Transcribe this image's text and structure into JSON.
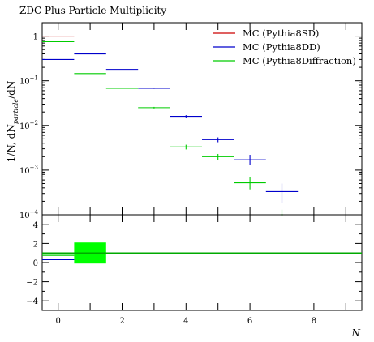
{
  "chart_data": {
    "type": "scatter",
    "title": "ZDC Plus Particle Multiplicity",
    "ylabel": "1/N, dN_particle/dN",
    "xlabel": "N",
    "xlim": [
      -0.5,
      9.5
    ],
    "ylim": [
      0.0001,
      2
    ],
    "yscale": "log",
    "x_ticks": [
      0,
      2,
      4,
      6,
      8
    ],
    "y_ticks": [
      {
        "value": 1,
        "label": "1"
      },
      {
        "value": 0.1,
        "label": "10^-1"
      },
      {
        "value": 0.01,
        "label": "10^-2"
      },
      {
        "value": 0.001,
        "label": "10^-3"
      },
      {
        "value": 0.0001,
        "label": "10^-4"
      }
    ],
    "legend_position": "top-right",
    "series": [
      {
        "name": "MC (Pythia8SD)",
        "color": "#cc0000",
        "points": [
          {
            "x": 0,
            "y": 1.0,
            "xerr": 0.5,
            "yerr_low": 0.0,
            "yerr_high": 0.0
          }
        ]
      },
      {
        "name": "MC (Pythia8DD)",
        "color": "#0000cc",
        "points": [
          {
            "x": 0,
            "y": 0.3,
            "xerr": 0.5,
            "yerr_low": 0.0,
            "yerr_high": 0.0
          },
          {
            "x": 1,
            "y": 0.4,
            "xerr": 0.5,
            "yerr_low": 0.0,
            "yerr_high": 0.0
          },
          {
            "x": 2,
            "y": 0.18,
            "xerr": 0.5,
            "yerr_low": 0.0,
            "yerr_high": 0.0
          },
          {
            "x": 3,
            "y": 0.068,
            "xerr": 0.5,
            "yerr_low": 0.002,
            "yerr_high": 0.002
          },
          {
            "x": 4,
            "y": 0.016,
            "xerr": 0.5,
            "yerr_low": 0.001,
            "yerr_high": 0.001
          },
          {
            "x": 5,
            "y": 0.0048,
            "xerr": 0.5,
            "yerr_low": 0.0006,
            "yerr_high": 0.0006
          },
          {
            "x": 6,
            "y": 0.0017,
            "xerr": 0.5,
            "yerr_low": 0.0004,
            "yerr_high": 0.0005
          },
          {
            "x": 7,
            "y": 0.00033,
            "xerr": 0.5,
            "yerr_low": 0.00015,
            "yerr_high": 0.00017
          }
        ]
      },
      {
        "name": "MC (Pythia8Diffraction)",
        "color": "#00cc00",
        "points": [
          {
            "x": 0,
            "y": 0.75,
            "xerr": 0.5,
            "yerr_low": 0.0,
            "yerr_high": 0.0
          },
          {
            "x": 1,
            "y": 0.145,
            "xerr": 0.5,
            "yerr_low": 0.0,
            "yerr_high": 0.0
          },
          {
            "x": 2,
            "y": 0.068,
            "xerr": 0.5,
            "yerr_low": 0.0,
            "yerr_high": 0.0
          },
          {
            "x": 3,
            "y": 0.025,
            "xerr": 0.5,
            "yerr_low": 0.001,
            "yerr_high": 0.001
          },
          {
            "x": 4,
            "y": 0.0033,
            "xerr": 0.5,
            "yerr_low": 0.0004,
            "yerr_high": 0.0004
          },
          {
            "x": 5,
            "y": 0.002,
            "xerr": 0.5,
            "yerr_low": 0.0003,
            "yerr_high": 0.0003
          },
          {
            "x": 6,
            "y": 0.00052,
            "xerr": 0.5,
            "yerr_low": 0.00015,
            "yerr_high": 0.00018
          },
          {
            "x": 7,
            "y": 0.0001,
            "xerr": 0.0,
            "yerr_low": 0.0,
            "yerr_high": 3e-05
          }
        ]
      }
    ],
    "ratio_panel": {
      "ylim": [
        -5,
        5
      ],
      "y_ticks": [
        4,
        2,
        0,
        -2,
        -4
      ],
      "reference_line": 1,
      "band": {
        "x_low": 0.5,
        "x_high": 1.5,
        "y_low": -0.1,
        "y_high": 2.1,
        "color": "#00ff00"
      },
      "lines": [
        {
          "series": "MC (Pythia8DD)",
          "color": "#0000cc",
          "segments": [
            {
              "x_low": -0.5,
              "x_high": 0.5,
              "y": 0.3
            }
          ]
        },
        {
          "series": "MC (Pythia8Diffraction)",
          "color": "#00cc00",
          "segments": [
            {
              "x_low": -0.5,
              "x_high": 0.5,
              "y": 0.75
            }
          ]
        }
      ]
    }
  }
}
